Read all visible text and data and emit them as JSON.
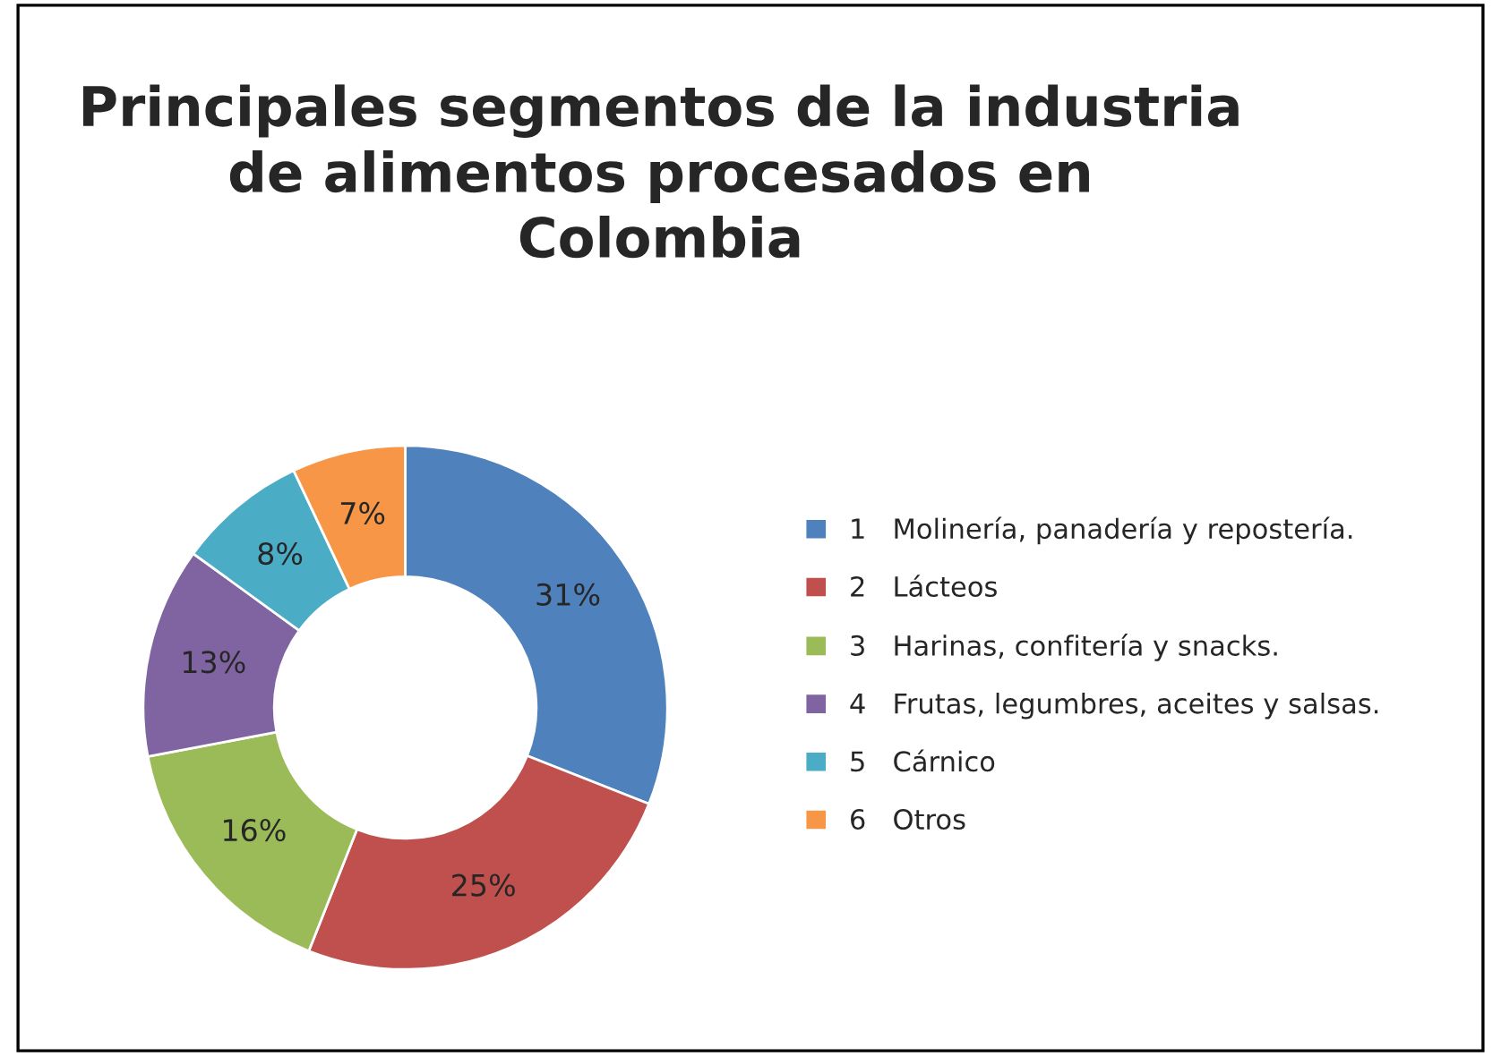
{
  "chart_data": {
    "type": "donut",
    "title": "Principales segmentos de la industria\nde alimentos procesados en\nColombia",
    "categories": [
      "1   Molinería, panadería y repostería.",
      "2   Lácteos",
      "3   Harinas, confitería y snacks.",
      "4   Frutas, legumbres, aceites y salsas.",
      "5   Cárnico",
      "6   Otros"
    ],
    "values": [
      31,
      25,
      16,
      13,
      8,
      7
    ],
    "value_labels": [
      "31%",
      "25%",
      "16%",
      "13%",
      "8%",
      "7%"
    ],
    "colors": [
      "#4f81bd",
      "#c0504d",
      "#9bbb59",
      "#8064a2",
      "#4bacc6",
      "#f79646"
    ],
    "legend": "right"
  }
}
